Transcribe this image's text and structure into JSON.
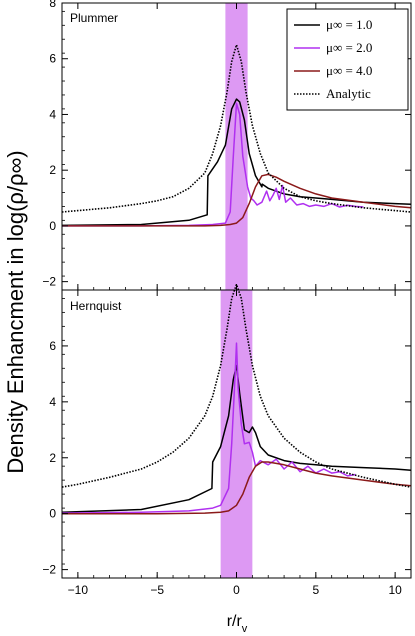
{
  "chart_data": [
    {
      "type": "line",
      "panel": "Plummer",
      "xlim": [
        -11,
        11
      ],
      "ylim": [
        -2.3,
        8
      ],
      "xticks": [
        -10,
        -5,
        0,
        5,
        10
      ],
      "yticks": [
        -2,
        0,
        2,
        4,
        6,
        8
      ],
      "shaded_band": {
        "x0": -0.7,
        "x1": 0.7,
        "color": "#d57ff0"
      },
      "legend_position": "top-right",
      "series": [
        {
          "name": "μ∞ = 1.0",
          "color": "#000000",
          "style": "solid",
          "x": [
            -11,
            -6,
            -3,
            -1.85,
            -1.8,
            -1.2,
            -0.7,
            -0.3,
            0,
            0.2,
            0.5,
            0.8,
            1.2,
            1.6,
            1.62,
            2,
            3,
            4,
            5,
            6,
            8,
            10,
            11
          ],
          "y": [
            0.02,
            0.05,
            0.2,
            0.4,
            1.8,
            2.3,
            2.9,
            4.2,
            4.55,
            4.45,
            3.8,
            2.6,
            1.8,
            1.4,
            1.5,
            1.35,
            1.15,
            1.05,
            1.0,
            0.95,
            0.85,
            0.8,
            0.78
          ]
        },
        {
          "name": "μ∞ = 2.0",
          "color": "#b030f0",
          "style": "solid",
          "x": [
            -11,
            -6,
            -3,
            -1.5,
            -0.7,
            -0.4,
            -0.2,
            0,
            0.2,
            0.4,
            0.7,
            0.9,
            1.1,
            1.3,
            1.6,
            1.9,
            2.1,
            2.3,
            2.5,
            2.7,
            2.9,
            3.1,
            3.4,
            3.8,
            4.2,
            4.6,
            5.0,
            5.5,
            6.0,
            6.5,
            7.0,
            7.5,
            8.0
          ],
          "y": [
            0.0,
            0.0,
            0.02,
            0.05,
            0.1,
            0.5,
            2.5,
            4.4,
            4.0,
            2.5,
            1.4,
            1.0,
            0.9,
            0.75,
            0.85,
            1.25,
            0.9,
            1.1,
            1.35,
            0.95,
            1.45,
            0.85,
            1.0,
            0.75,
            0.8,
            0.7,
            0.75,
            0.7,
            0.8,
            0.68,
            0.74,
            0.7,
            0.68
          ]
        },
        {
          "name": "μ∞ = 4.0",
          "color": "#8b1a1a",
          "style": "solid",
          "x": [
            -11,
            -5,
            -2,
            -1,
            -0.4,
            0,
            0.4,
            0.8,
            1.2,
            1.6,
            2.0,
            2.5,
            3,
            4,
            5,
            6,
            8,
            10,
            11
          ],
          "y": [
            0.0,
            0.0,
            0.0,
            0.02,
            0.05,
            0.1,
            0.3,
            0.8,
            1.4,
            1.8,
            1.85,
            1.75,
            1.6,
            1.35,
            1.15,
            1.0,
            0.85,
            0.7,
            0.65
          ]
        },
        {
          "name": "Analytic",
          "color": "#000000",
          "style": "dotted",
          "x": [
            -11,
            -10,
            -8,
            -6,
            -5,
            -4,
            -3,
            -2,
            -1.5,
            -1,
            -0.6,
            -0.3,
            0,
            0.3,
            0.6,
            1,
            1.5,
            2,
            3,
            4,
            5,
            6,
            8,
            10,
            11
          ],
          "y": [
            0.5,
            0.55,
            0.65,
            0.8,
            0.9,
            1.05,
            1.35,
            1.9,
            2.6,
            3.6,
            4.8,
            5.9,
            6.5,
            5.9,
            4.8,
            3.6,
            2.6,
            1.9,
            1.35,
            1.05,
            0.9,
            0.8,
            0.65,
            0.55,
            0.5
          ]
        }
      ]
    },
    {
      "type": "line",
      "panel": "Hernquist",
      "xlim": [
        -11,
        11
      ],
      "ylim": [
        -2.3,
        8
      ],
      "xticks": [
        -10,
        -5,
        0,
        5,
        10
      ],
      "yticks": [
        -2,
        0,
        2,
        4,
        6,
        8
      ],
      "shaded_band": {
        "x0": -1.0,
        "x1": 1.0,
        "color": "#d57ff0"
      },
      "series": [
        {
          "name": "μ∞ = 1.0",
          "color": "#000000",
          "style": "solid",
          "x": [
            -11,
            -6,
            -3,
            -1.55,
            -1.5,
            -1.0,
            -0.5,
            -0.2,
            0,
            0.2,
            0.5,
            0.8,
            1.0,
            1.2,
            1.5,
            2,
            3,
            4,
            5,
            6,
            8,
            10,
            11
          ],
          "y": [
            0.05,
            0.15,
            0.5,
            0.9,
            1.85,
            2.4,
            3.5,
            4.8,
            5.3,
            4.3,
            3.0,
            2.9,
            3.1,
            2.9,
            2.4,
            2.1,
            1.9,
            1.8,
            1.75,
            1.7,
            1.65,
            1.6,
            1.55
          ]
        },
        {
          "name": "μ∞ = 2.0",
          "color": "#b030f0",
          "style": "solid",
          "x": [
            -11,
            -6,
            -3,
            -1.5,
            -1,
            -0.5,
            -0.3,
            -0.1,
            0,
            0.1,
            0.3,
            0.5,
            0.8,
            1.0,
            1.2,
            1.5,
            2,
            2.5,
            3,
            3.5,
            4,
            4.5,
            5,
            5.5,
            6,
            6.5,
            7,
            7.5
          ],
          "y": [
            0.02,
            0.05,
            0.1,
            0.2,
            0.3,
            0.9,
            2.5,
            4.8,
            6.1,
            4.5,
            3.2,
            2.5,
            2.55,
            2.2,
            1.7,
            1.9,
            1.75,
            1.95,
            1.6,
            1.85,
            1.5,
            1.7,
            1.45,
            1.6,
            1.45,
            1.5,
            1.35,
            1.4
          ]
        },
        {
          "name": "μ∞ = 4.0",
          "color": "#8b1a1a",
          "style": "solid",
          "x": [
            -11,
            -5,
            -2,
            -1,
            -0.5,
            0,
            0.4,
            0.8,
            1.2,
            1.6,
            2.0,
            3,
            4,
            5,
            6,
            8,
            10,
            11
          ],
          "y": [
            0.0,
            0.0,
            0.02,
            0.05,
            0.1,
            0.3,
            0.7,
            1.3,
            1.7,
            1.85,
            1.85,
            1.75,
            1.6,
            1.45,
            1.35,
            1.2,
            1.05,
            1.0
          ]
        },
        {
          "name": "Analytic",
          "color": "#000000",
          "style": "dotted",
          "x": [
            -11,
            -10,
            -8,
            -6,
            -5,
            -4,
            -3,
            -2,
            -1.5,
            -1,
            -0.6,
            -0.3,
            0,
            0.3,
            0.6,
            1,
            1.5,
            2,
            3,
            4,
            5,
            6,
            8,
            10,
            11
          ],
          "y": [
            0.95,
            1.05,
            1.3,
            1.6,
            1.85,
            2.2,
            2.7,
            3.5,
            4.2,
            5.3,
            6.6,
            7.7,
            8.2,
            7.7,
            6.6,
            5.3,
            4.2,
            3.5,
            2.7,
            2.2,
            1.85,
            1.6,
            1.3,
            1.05,
            0.95
          ]
        }
      ]
    }
  ],
  "labels": {
    "panel1": "Plummer",
    "panel2": "Hernquist",
    "ylabel": "Density Enhancment in log(ρ/ρ∞)",
    "xlabel": "r/rv"
  },
  "legend": [
    {
      "label": "μ∞ = 1.0",
      "color": "#000000",
      "style": "solid"
    },
    {
      "label": "μ∞ = 2.0",
      "color": "#b030f0",
      "style": "solid"
    },
    {
      "label": "μ∞ = 4.0",
      "color": "#8b1a1a",
      "style": "solid"
    },
    {
      "label": "Analytic",
      "color": "#000000",
      "style": "dotted"
    }
  ]
}
